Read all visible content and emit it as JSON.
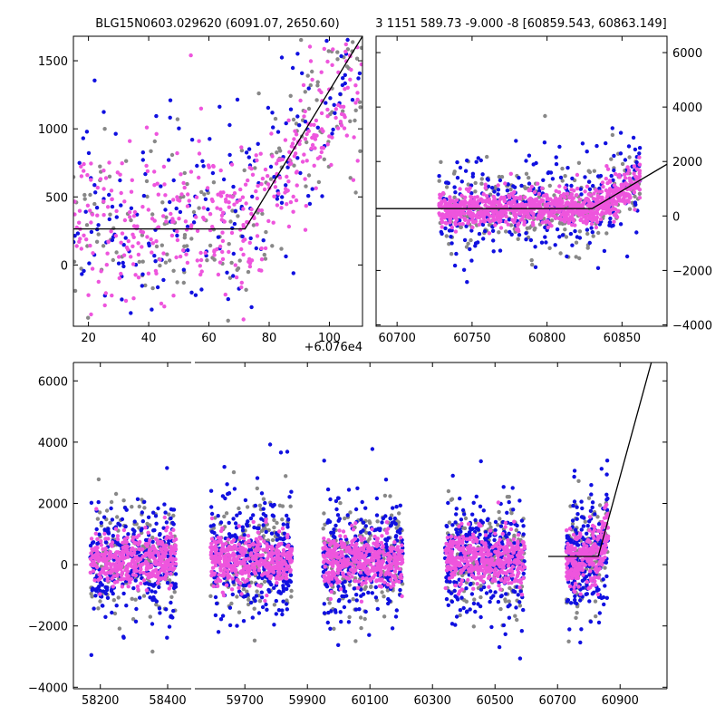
{
  "colors": {
    "grey": "#888888",
    "blue": "#1010e0",
    "pink": "#ee55dd",
    "model": "#000000"
  },
  "chart_data": [
    {
      "type": "scatter",
      "panel": "top-left",
      "title": "BLG15N0603.029620 (6091.07, 2650.60)",
      "xlim": [
        15,
        111
      ],
      "ylim": [
        -450,
        1680
      ],
      "xticks": [
        20,
        40,
        60,
        80,
        100
      ],
      "xtick_labels": [
        "20",
        "40",
        "60",
        "80",
        "100"
      ],
      "yticks": [
        0,
        500,
        1000,
        1500
      ],
      "ytick_labels": [
        "0",
        "500",
        "1000",
        "1500"
      ],
      "yaxis_side": "left",
      "x_offset_label": "+6.076e4",
      "model_x": [
        15,
        72,
        111
      ],
      "model_y": [
        265,
        265,
        1680
      ],
      "series": [
        {
          "name": "grey",
          "n": 180,
          "seed": 11,
          "x_range": [
            15,
            111
          ],
          "center": 330,
          "spread": 320,
          "rise_start": 72,
          "rise_rate": 30
        },
        {
          "name": "blue",
          "n": 200,
          "seed": 12,
          "x_range": [
            15,
            111
          ],
          "center": 330,
          "spread": 360,
          "rise_start": 72,
          "rise_rate": 30
        },
        {
          "name": "pink",
          "n": 420,
          "seed": 13,
          "x_range": [
            15,
            111
          ],
          "center": 300,
          "spread": 260,
          "rise_start": 72,
          "rise_rate": 30
        }
      ]
    },
    {
      "type": "scatter",
      "panel": "top-right",
      "title": "3 1151 589.73 -9.000 -8 [60859.543, 60863.149]",
      "xlim": [
        60686,
        60880
      ],
      "ylim": [
        -4050,
        6600
      ],
      "xticks": [
        60700,
        60750,
        60800,
        60850
      ],
      "xtick_labels": [
        "60700",
        "60750",
        "60800",
        "60850"
      ],
      "yticks": [
        -4000,
        -2000,
        0,
        2000,
        4000,
        6000
      ],
      "ytick_labels": [
        "−4000",
        "−2000",
        "0",
        "2000",
        "4000",
        "6000"
      ],
      "yaxis_side": "right",
      "model_x": [
        60686,
        60830,
        60880
      ],
      "model_y": [
        270,
        270,
        1900
      ],
      "series": [
        {
          "name": "grey",
          "n": 260,
          "seed": 21,
          "x_range": [
            60728,
            60862
          ],
          "center": 250,
          "spread": 700,
          "rise_start": 60830,
          "rise_rate": 30
        },
        {
          "name": "blue",
          "n": 300,
          "seed": 22,
          "x_range": [
            60728,
            60862
          ],
          "center": 250,
          "spread": 900,
          "rise_start": 60830,
          "rise_rate": 30
        },
        {
          "name": "pink",
          "n": 900,
          "seed": 23,
          "x_range": [
            60728,
            60862
          ],
          "center": 250,
          "spread": 300,
          "rise_start": 60830,
          "rise_rate": 30
        }
      ]
    },
    {
      "type": "scatter",
      "panel": "bottom",
      "title": "",
      "ylim": [
        -4050,
        6600
      ],
      "yticks": [
        -4000,
        -2000,
        0,
        2000,
        4000,
        6000
      ],
      "ytick_labels": [
        "−4000",
        "−2000",
        "0",
        "2000",
        "4000",
        "6000"
      ],
      "yaxis_side": "left",
      "segments": [
        {
          "xlim": [
            58120,
            58470
          ],
          "xticks": [
            58200,
            58400
          ],
          "xtick_labels": [
            "58200",
            "58400"
          ]
        },
        {
          "xlim": [
            59540,
            61050
          ],
          "xticks": [
            59700,
            59900,
            60100,
            60300,
            60500,
            60700,
            60900
          ],
          "xtick_labels": [
            "59700",
            "59900",
            "60100",
            "60300",
            "60500",
            "60700",
            "60900"
          ]
        }
      ],
      "seasons": [
        {
          "x_range": [
            58170,
            58425
          ],
          "n": 900,
          "seed": 31
        },
        {
          "x_range": [
            59590,
            59850
          ],
          "n": 900,
          "seed": 32
        },
        {
          "x_range": [
            59950,
            60205
          ],
          "n": 900,
          "seed": 33
        },
        {
          "x_range": [
            60340,
            60595
          ],
          "n": 900,
          "seed": 34
        },
        {
          "x_range": [
            60728,
            60862
          ],
          "n": 600,
          "seed": 35,
          "rise_start": 60830,
          "rise_rate": 30
        }
      ],
      "model_x": [
        60670,
        60830,
        61000
      ],
      "model_y": [
        270,
        270,
        6600
      ]
    }
  ]
}
